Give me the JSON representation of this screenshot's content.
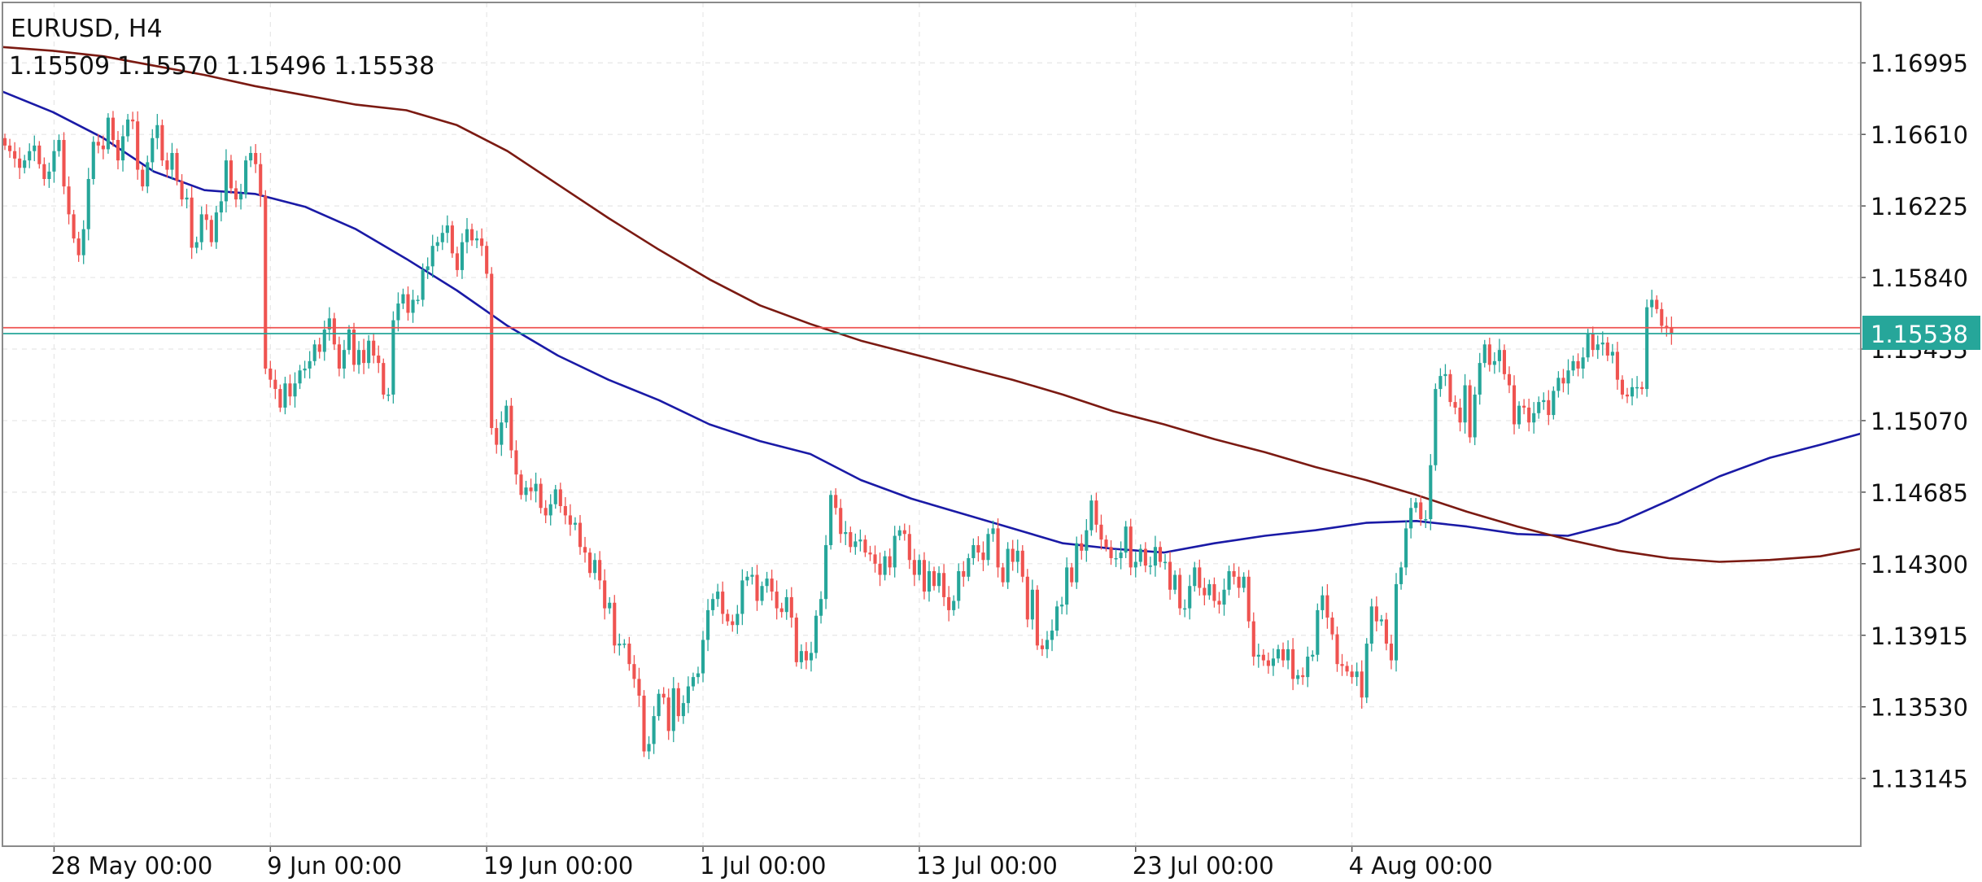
{
  "header": {
    "symbol": "EURUSD, H4",
    "ohlc": {
      "open": "1.15509",
      "high": "1.15570",
      "low": "1.15496",
      "close": "1.15538"
    }
  },
  "colors": {
    "background": "#ffffff",
    "grid": "#e6e6e6",
    "bull": "#26a69a",
    "bear": "#ef5350",
    "ma_fast": "#1a1aa6",
    "ma_slow": "#7b1a12",
    "bid_line": "#26a69a",
    "ask_line": "#ef5350",
    "price_tag": "#26a69a",
    "text": "#111111"
  },
  "chart_data": {
    "type": "candlestick",
    "symbol": "EURUSD",
    "timeframe": "H4",
    "ylim": [
      1.1278,
      1.1732
    ],
    "grid": true,
    "y_ticks": [
      "1.16995",
      "1.16610",
      "1.16225",
      "1.15840",
      "1.15455",
      "1.15070",
      "1.14685",
      "1.14300",
      "1.13915",
      "1.13530",
      "1.13145"
    ],
    "x_ticks": [
      {
        "label": "28 May 00:00",
        "bar": 10
      },
      {
        "label": "9 Jun 00:00",
        "bar": 54
      },
      {
        "label": "19 Jun 00:00",
        "bar": 98
      },
      {
        "label": "1 Jul 00:00",
        "bar": 142
      },
      {
        "label": "13 Jul 00:00",
        "bar": 186
      },
      {
        "label": "23 Jul 00:00",
        "bar": 230
      },
      {
        "label": "4 Aug 00:00",
        "bar": 274
      }
    ],
    "visible_bars": 378,
    "current_price": "1.15538",
    "bid": 1.15538,
    "ask": 1.1557,
    "closes": [
      1.1655,
      1.1652,
      1.1648,
      1.1643,
      1.1647,
      1.1652,
      1.1655,
      1.1645,
      1.1637,
      1.1641,
      1.1652,
      1.1658,
      1.1633,
      1.1618,
      1.1605,
      1.1596,
      1.161,
      1.1637,
      1.1657,
      1.1655,
      1.1653,
      1.167,
      1.1658,
      1.1647,
      1.166,
      1.1669,
      1.1668,
      1.1642,
      1.1633,
      1.1646,
      1.1659,
      1.1666,
      1.1647,
      1.1642,
      1.1651,
      1.1636,
      1.1626,
      1.1627,
      1.16,
      1.1603,
      1.1618,
      1.1615,
      1.1603,
      1.1619,
      1.1625,
      1.1647,
      1.1632,
      1.1626,
      1.1629,
      1.1647,
      1.1651,
      1.1645,
      1.1628,
      1.1535,
      1.1529,
      1.1524,
      1.1514,
      1.1527,
      1.152,
      1.1527,
      1.1534,
      1.1535,
      1.1539,
      1.1548,
      1.1544,
      1.1556,
      1.1562,
      1.1548,
      1.1535,
      1.1545,
      1.1556,
      1.1537,
      1.1545,
      1.1538,
      1.155,
      1.1542,
      1.1538,
      1.1521,
      1.1521,
      1.1561,
      1.157,
      1.1575,
      1.1565,
      1.1572,
      1.1572,
      1.1588,
      1.159,
      1.1601,
      1.1603,
      1.1608,
      1.1612,
      1.1597,
      1.1588,
      1.1603,
      1.161,
      1.1604,
      1.1605,
      1.1601,
      1.1586,
      1.1503,
      1.1494,
      1.1506,
      1.1515,
      1.1491,
      1.1478,
      1.1467,
      1.1471,
      1.1469,
      1.1473,
      1.146,
      1.1456,
      1.1462,
      1.147,
      1.1461,
      1.1456,
      1.1451,
      1.1452,
      1.1439,
      1.1436,
      1.1425,
      1.1432,
      1.1421,
      1.1406,
      1.1409,
      1.1386,
      1.1387,
      1.1387,
      1.1376,
      1.1368,
      1.1359,
      1.1329,
      1.1333,
      1.1348,
      1.136,
      1.1358,
      1.134,
      1.1363,
      1.1348,
      1.1355,
      1.1364,
      1.1369,
      1.1371,
      1.1389,
      1.1405,
      1.1411,
      1.1415,
      1.1403,
      1.1399,
      1.1397,
      1.1403,
      1.1421,
      1.1423,
      1.1424,
      1.141,
      1.1418,
      1.1422,
      1.1415,
      1.1406,
      1.1404,
      1.1412,
      1.1401,
      1.1377,
      1.1383,
      1.1378,
      1.1382,
      1.1402,
      1.1411,
      1.144,
      1.1467,
      1.146,
      1.1446,
      1.1447,
      1.1439,
      1.1442,
      1.1443,
      1.1436,
      1.1435,
      1.143,
      1.1424,
      1.1434,
      1.1428,
      1.1445,
      1.1448,
      1.1446,
      1.1432,
      1.1424,
      1.1432,
      1.1415,
      1.1426,
      1.1418,
      1.1425,
      1.1412,
      1.1405,
      1.141,
      1.1426,
      1.1423,
      1.1433,
      1.144,
      1.1436,
      1.1432,
      1.1446,
      1.1449,
      1.1428,
      1.142,
      1.1438,
      1.1431,
      1.1437,
      1.1423,
      1.14,
      1.1416,
      1.1386,
      1.1384,
      1.1389,
      1.1394,
      1.1407,
      1.1408,
      1.1428,
      1.142,
      1.1441,
      1.1437,
      1.1448,
      1.1464,
      1.1451,
      1.1443,
      1.1439,
      1.1433,
      1.1433,
      1.1436,
      1.145,
      1.1428,
      1.1431,
      1.1438,
      1.1429,
      1.1429,
      1.1439,
      1.1431,
      1.1431,
      1.1416,
      1.1424,
      1.1406,
      1.1406,
      1.1418,
      1.1428,
      1.1417,
      1.1413,
      1.1419,
      1.141,
      1.1408,
      1.1416,
      1.1426,
      1.1423,
      1.1417,
      1.1423,
      1.1399,
      1.138,
      1.1381,
      1.1378,
      1.1375,
      1.1379,
      1.1384,
      1.1378,
      1.1384,
      1.1368,
      1.137,
      1.1369,
      1.138,
      1.1381,
      1.1405,
      1.1413,
      1.1401,
      1.1392,
      1.1376,
      1.1375,
      1.1372,
      1.1369,
      1.1372,
      1.1358,
      1.1387,
      1.1407,
      1.1399,
      1.14,
      1.1387,
      1.1378,
      1.1419,
      1.1428,
      1.1449,
      1.146,
      1.1463,
      1.1454,
      1.1454,
      1.1483,
      1.1524,
      1.1531,
      1.1532,
      1.1517,
      1.1514,
      1.1506,
      1.1526,
      1.1498,
      1.1521,
      1.1538,
      1.1548,
      1.1537,
      1.1539,
      1.1545,
      1.1532,
      1.1526,
      1.1505,
      1.1515,
      1.1514,
      1.1506,
      1.1511,
      1.1517,
      1.1518,
      1.151,
      1.1523,
      1.153,
      1.1527,
      1.1534,
      1.1539,
      1.1535,
      1.1541,
      1.1554,
      1.1545,
      1.1548,
      1.1549,
      1.1542,
      1.1544,
      1.1529,
      1.1521,
      1.152,
      1.1525,
      1.1525,
      1.1524,
      1.1568,
      1.1572,
      1.1567,
      1.1558,
      1.1557,
      1.15538
    ],
    "series": [
      {
        "type": "line",
        "points": [
          [
            0,
            1.1684
          ],
          [
            20,
            1.1673
          ],
          [
            40,
            1.1659
          ],
          [
            60,
            1.1641
          ],
          [
            80,
            1.1631
          ],
          [
            100,
            1.1629
          ],
          [
            120,
            1.1622
          ],
          [
            140,
            1.161
          ],
          [
            160,
            1.1594
          ],
          [
            180,
            1.1577
          ],
          [
            200,
            1.1558
          ],
          [
            220,
            1.1542
          ],
          [
            240,
            1.1529
          ],
          [
            260,
            1.1518
          ],
          [
            280,
            1.1505
          ],
          [
            300,
            1.1496
          ],
          [
            320,
            1.1489
          ],
          [
            340,
            1.1475
          ],
          [
            360,
            1.1465
          ],
          [
            380,
            1.1457
          ],
          [
            400,
            1.1449
          ],
          [
            420,
            1.1441
          ],
          [
            440,
            1.1438
          ],
          [
            460,
            1.1436
          ],
          [
            480,
            1.1441
          ],
          [
            500,
            1.1445
          ],
          [
            520,
            1.1448
          ],
          [
            540,
            1.1452
          ],
          [
            560,
            1.1453
          ],
          [
            580,
            1.145
          ],
          [
            600,
            1.1446
          ],
          [
            620,
            1.1445
          ],
          [
            640,
            1.1452
          ],
          [
            660,
            1.1464
          ],
          [
            680,
            1.1477
          ],
          [
            700,
            1.1487
          ],
          [
            720,
            1.1494
          ],
          [
            736,
            1.15
          ]
        ]
      },
      {
        "type": "line",
        "points": [
          [
            0,
            1.1708
          ],
          [
            20,
            1.1706
          ],
          [
            40,
            1.1703
          ],
          [
            60,
            1.1698
          ],
          [
            80,
            1.1693
          ],
          [
            100,
            1.1687
          ],
          [
            120,
            1.1682
          ],
          [
            140,
            1.1677
          ],
          [
            160,
            1.1674
          ],
          [
            180,
            1.1666
          ],
          [
            200,
            1.1652
          ],
          [
            220,
            1.1634
          ],
          [
            240,
            1.1616
          ],
          [
            260,
            1.1599
          ],
          [
            280,
            1.1583
          ],
          [
            300,
            1.1569
          ],
          [
            320,
            1.1559
          ],
          [
            340,
            1.155
          ],
          [
            360,
            1.1543
          ],
          [
            380,
            1.1536
          ],
          [
            400,
            1.1529
          ],
          [
            420,
            1.1521
          ],
          [
            440,
            1.1512
          ],
          [
            460,
            1.1505
          ],
          [
            480,
            1.1497
          ],
          [
            500,
            1.149
          ],
          [
            520,
            1.1482
          ],
          [
            540,
            1.1475
          ],
          [
            560,
            1.1467
          ],
          [
            580,
            1.1458
          ],
          [
            600,
            1.145
          ],
          [
            620,
            1.1443
          ],
          [
            640,
            1.1437
          ],
          [
            660,
            1.1433
          ],
          [
            680,
            1.1431
          ],
          [
            700,
            1.1432
          ],
          [
            720,
            1.1434
          ],
          [
            736,
            1.1438
          ]
        ]
      }
    ]
  }
}
